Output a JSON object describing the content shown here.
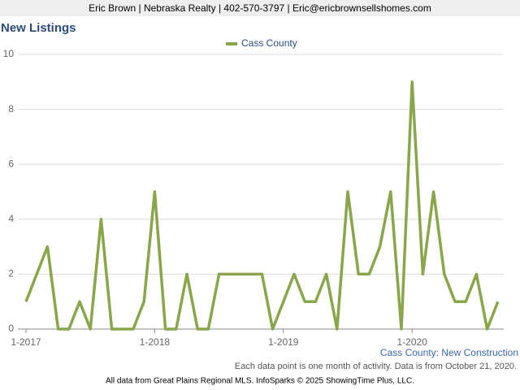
{
  "header": {
    "text": "Eric Brown | Nebraska Realty | 402-570-3797 | Eric@ericbrownsellshomes.com"
  },
  "chart_data": {
    "type": "line",
    "title": "New Listings",
    "categories": [
      "1-2017",
      null,
      null,
      null,
      null,
      null,
      null,
      null,
      null,
      null,
      null,
      null,
      "1-2018",
      null,
      null,
      null,
      null,
      null,
      null,
      null,
      null,
      null,
      null,
      null,
      "1-2019",
      null,
      null,
      null,
      null,
      null,
      null,
      null,
      null,
      null,
      null,
      null,
      "1-2020",
      null,
      null,
      null,
      null,
      null,
      null,
      null,
      null
    ],
    "series": [
      {
        "name": "Cass County",
        "color": "#8aa64a",
        "values": [
          1,
          2,
          3,
          0,
          0,
          1,
          0,
          4,
          0,
          0,
          0,
          1,
          5,
          0,
          0,
          2,
          0,
          0,
          2,
          2,
          2,
          2,
          2,
          0,
          1,
          2,
          1,
          1,
          2,
          0,
          5,
          2,
          2,
          3,
          5,
          0,
          9,
          2,
          5,
          2,
          1,
          1,
          2,
          0,
          1
        ]
      }
    ],
    "ylim": [
      0,
      10
    ],
    "yticks": [
      0,
      2,
      4,
      6,
      8,
      10
    ],
    "grid": true,
    "legend": "top",
    "chart_caption": "Cass County: New Construction",
    "note": "Each data point is one month of activity. Data is from October 21, 2020."
  },
  "footer": {
    "text": "All data from Great Plains Regional MLS. InfoSparks © 2025 ShowingTime Plus, LLC."
  }
}
